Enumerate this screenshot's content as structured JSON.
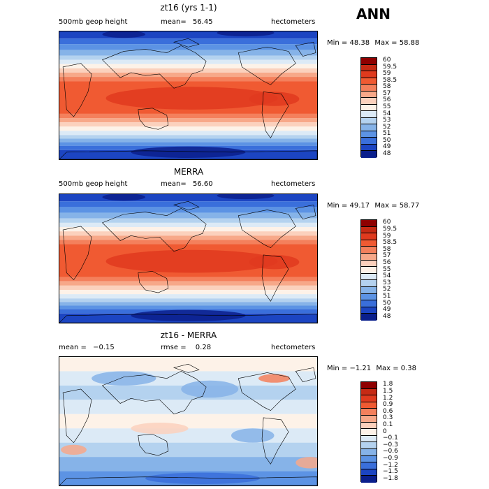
{
  "season": "ANN",
  "panels": [
    {
      "title": "zt16 (yrs 1-1)",
      "left_label": "500mb geop height",
      "mean_label": "mean=",
      "mean_value": "56.45",
      "units": "hectometers",
      "min_label": "Min =",
      "min_value": "48.38",
      "max_label": "Max =",
      "max_value": "58.88",
      "levels": [
        "60",
        "59.5",
        "59",
        "58.5",
        "58",
        "57",
        "56",
        "55",
        "54",
        "53",
        "52",
        "51",
        "50",
        "49",
        "48"
      ],
      "colors": [
        "#8e0000",
        "#c62a14",
        "#e03a1e",
        "#f05a32",
        "#f4805c",
        "#f7a889",
        "#fbd1bd",
        "#fdf2e8",
        "#dceaf6",
        "#b4d2ef",
        "#86b3e8",
        "#5c93e4",
        "#3a6fdb",
        "#1c45c2",
        "#0a1f8c"
      ],
      "field": "z500"
    },
    {
      "title": "MERRA",
      "left_label": "500mb geop height",
      "mean_label": "mean=",
      "mean_value": "56.60",
      "units": "hectometers",
      "min_label": "Min =",
      "min_value": "49.17",
      "max_label": "Max =",
      "max_value": "58.77",
      "levels": [
        "60",
        "59.5",
        "59",
        "58.5",
        "58",
        "57",
        "56",
        "55",
        "54",
        "53",
        "52",
        "51",
        "50",
        "49",
        "48"
      ],
      "colors": [
        "#8e0000",
        "#c62a14",
        "#e03a1e",
        "#f05a32",
        "#f4805c",
        "#f7a889",
        "#fbd1bd",
        "#fdf2e8",
        "#dceaf6",
        "#b4d2ef",
        "#86b3e8",
        "#5c93e4",
        "#3a6fdb",
        "#1c45c2",
        "#0a1f8c"
      ],
      "field": "z500"
    },
    {
      "title": "zt16 - MERRA",
      "left_label": "mean =",
      "left_value": "−0.15",
      "rmse_label": "rmse =",
      "rmse_value": "0.28",
      "units": "hectometers",
      "min_label": "Min =",
      "min_value": "−1.21",
      "max_label": "Max =",
      "max_value": "0.38",
      "levels": [
        "1.8",
        "1.5",
        "1.2",
        "0.9",
        "0.6",
        "0.3",
        "0.1",
        "0",
        "−0.1",
        "−0.3",
        "−0.6",
        "−0.9",
        "−1.2",
        "−1.5",
        "−1.8"
      ],
      "colors": [
        "#8e0000",
        "#c62a14",
        "#e03a1e",
        "#f05a32",
        "#f4805c",
        "#f7a889",
        "#fbd1bd",
        "#fdf2e8",
        "#dceaf6",
        "#b4d2ef",
        "#86b3e8",
        "#5c93e4",
        "#3a6fdb",
        "#1c45c2",
        "#0a1f8c"
      ],
      "field": "diff"
    }
  ]
}
